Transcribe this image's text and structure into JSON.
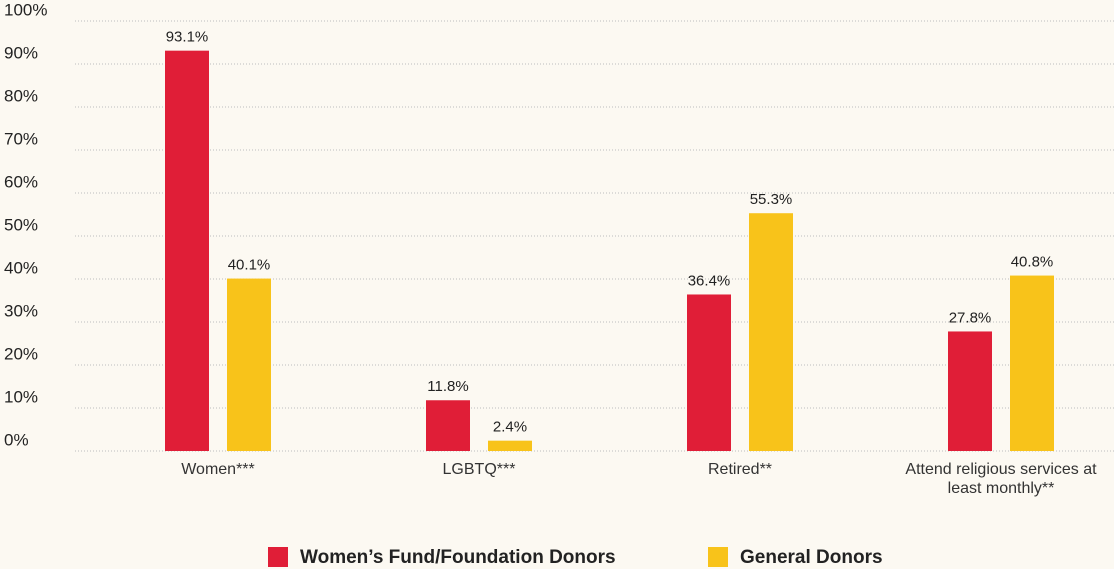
{
  "chart_data": {
    "type": "bar",
    "categories": [
      "Women***",
      "LGBTQ***",
      "Retired**",
      "Attend religious services at least monthly**"
    ],
    "series": [
      {
        "name": "Women’s Fund/Foundation Donors",
        "color": "#e01e37",
        "values": [
          93.1,
          11.8,
          36.4,
          27.8
        ],
        "value_labels": [
          "93.1%",
          "11.8%",
          "36.4%",
          "27.8%"
        ]
      },
      {
        "name": "General Donors",
        "color": "#f8c31a",
        "values": [
          40.1,
          2.4,
          55.3,
          40.8
        ],
        "value_labels": [
          "40.1%",
          "2.4%",
          "55.3%",
          "40.8%"
        ]
      }
    ],
    "ylim": [
      0,
      100
    ],
    "yticks": [
      {
        "value": 0,
        "label": "0%"
      },
      {
        "value": 10,
        "label": "10%"
      },
      {
        "value": 20,
        "label": "20%"
      },
      {
        "value": 30,
        "label": "30%"
      },
      {
        "value": 40,
        "label": "40%"
      },
      {
        "value": 50,
        "label": "50%"
      },
      {
        "value": 60,
        "label": "60%"
      },
      {
        "value": 70,
        "label": "70%"
      },
      {
        "value": 80,
        "label": "80%"
      },
      {
        "value": 90,
        "label": "90%"
      },
      {
        "value": 100,
        "label": "100%"
      }
    ],
    "grid": true,
    "legend": "bottom"
  }
}
